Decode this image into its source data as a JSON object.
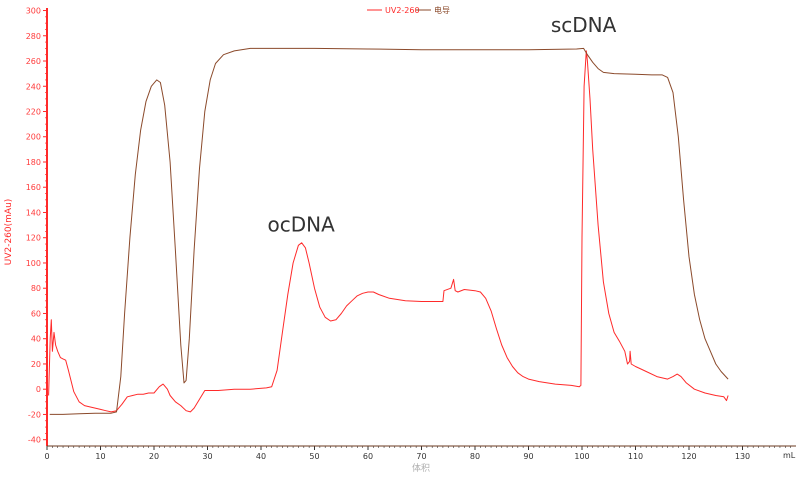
{
  "chart_data": {
    "type": "line",
    "xlabel": "体积",
    "x_unit": "mL",
    "ylabel": "UV2-260(mAu)",
    "xlim": [
      0,
      140
    ],
    "ylim": [
      -45,
      302
    ],
    "x_ticks": [
      "0",
      "10",
      "20",
      "30",
      "40",
      "50",
      "60",
      "70",
      "80",
      "90",
      "100",
      "110",
      "120",
      "130"
    ],
    "y_ticks": [
      "300",
      "280",
      "260",
      "240",
      "220",
      "200",
      "180",
      "160",
      "140",
      "120",
      "100",
      "80",
      "60",
      "40",
      "20",
      "0",
      "-20",
      "-40"
    ],
    "legend_position": "top-center",
    "colors": {
      "uv": "#ff2a2a",
      "cond": "#8b4a2b",
      "axis": "#ff2a2a",
      "tick_label": "#ff3b3b",
      "bottom_axis": "#6b3a1f"
    },
    "series": [
      {
        "name": "UV2-260",
        "color_key": "uv",
        "points": [
          [
            0.3,
            -5
          ],
          [
            0.6,
            40
          ],
          [
            0.8,
            55
          ],
          [
            1.0,
            30
          ],
          [
            1.3,
            45
          ],
          [
            1.6,
            35
          ],
          [
            2.0,
            30
          ],
          [
            2.5,
            25
          ],
          [
            3.0,
            24
          ],
          [
            3.5,
            23
          ],
          [
            4.0,
            15
          ],
          [
            5.0,
            -2
          ],
          [
            6.0,
            -10
          ],
          [
            7.0,
            -13
          ],
          [
            8.0,
            -14
          ],
          [
            9.0,
            -15
          ],
          [
            10.0,
            -16
          ],
          [
            11.0,
            -17
          ],
          [
            12.0,
            -18
          ],
          [
            13.0,
            -17
          ],
          [
            14.0,
            -12
          ],
          [
            15.0,
            -6
          ],
          [
            16.0,
            -5
          ],
          [
            17.0,
            -4
          ],
          [
            18.0,
            -4
          ],
          [
            19.0,
            -3
          ],
          [
            20.0,
            -3
          ],
          [
            21.0,
            2
          ],
          [
            21.7,
            4
          ],
          [
            22.5,
            0
          ],
          [
            23.0,
            -5
          ],
          [
            24.0,
            -10
          ],
          [
            25.0,
            -13
          ],
          [
            26.0,
            -17
          ],
          [
            26.8,
            -18
          ],
          [
            27.5,
            -15
          ],
          [
            28.5,
            -8
          ],
          [
            29.5,
            -1
          ],
          [
            30.5,
            -1
          ],
          [
            32.0,
            -1
          ],
          [
            35.0,
            0
          ],
          [
            38.0,
            0
          ],
          [
            41.0,
            1
          ],
          [
            42.0,
            2
          ],
          [
            43.0,
            15
          ],
          [
            44.0,
            45
          ],
          [
            45.0,
            75
          ],
          [
            46.0,
            100
          ],
          [
            47.0,
            114
          ],
          [
            47.6,
            116
          ],
          [
            48.3,
            112
          ],
          [
            49.0,
            100
          ],
          [
            50.0,
            80
          ],
          [
            51.0,
            65
          ],
          [
            52.0,
            57
          ],
          [
            53.0,
            54
          ],
          [
            54.0,
            55
          ],
          [
            55.0,
            60
          ],
          [
            56.0,
            66
          ],
          [
            57.0,
            70
          ],
          [
            58.0,
            74
          ],
          [
            59.0,
            76
          ],
          [
            60.0,
            77
          ],
          [
            61.0,
            77
          ],
          [
            62.0,
            75
          ],
          [
            64.0,
            72
          ],
          [
            67.0,
            70
          ],
          [
            70.0,
            69.5
          ],
          [
            74.0,
            69.5
          ],
          [
            74.2,
            78
          ],
          [
            75.5,
            80
          ],
          [
            76.0,
            87
          ],
          [
            76.3,
            78
          ],
          [
            76.8,
            77
          ],
          [
            78.0,
            79
          ],
          [
            80.0,
            78
          ],
          [
            81.0,
            77
          ],
          [
            82.0,
            72
          ],
          [
            83.0,
            62
          ],
          [
            84.0,
            48
          ],
          [
            85.0,
            35
          ],
          [
            86.0,
            25
          ],
          [
            87.0,
            18
          ],
          [
            88.0,
            13
          ],
          [
            89.0,
            10
          ],
          [
            90.0,
            8
          ],
          [
            92.0,
            6
          ],
          [
            95.0,
            4
          ],
          [
            98.0,
            3
          ],
          [
            99.5,
            2
          ],
          [
            99.8,
            3
          ],
          [
            100.0,
            120
          ],
          [
            100.4,
            240
          ],
          [
            100.8,
            268
          ],
          [
            101.0,
            260
          ],
          [
            101.5,
            230
          ],
          [
            102.0,
            190
          ],
          [
            103.0,
            130
          ],
          [
            104.0,
            85
          ],
          [
            105.0,
            60
          ],
          [
            106.0,
            45
          ],
          [
            107.0,
            38
          ],
          [
            108.0,
            30
          ],
          [
            108.5,
            20
          ],
          [
            108.9,
            22
          ],
          [
            109.0,
            30
          ],
          [
            109.2,
            20
          ],
          [
            110.0,
            18
          ],
          [
            111.0,
            16
          ],
          [
            112.0,
            14
          ],
          [
            114.0,
            10
          ],
          [
            116.0,
            8
          ],
          [
            117.0,
            10
          ],
          [
            117.8,
            12
          ],
          [
            118.5,
            10
          ],
          [
            119.5,
            5
          ],
          [
            121.0,
            0
          ],
          [
            123.0,
            -3
          ],
          [
            125.0,
            -5
          ],
          [
            126.5,
            -6
          ],
          [
            127.0,
            -9
          ],
          [
            127.3,
            -5
          ]
        ]
      },
      {
        "name": "电导",
        "color_key": "cond",
        "points": [
          [
            0.5,
            -20
          ],
          [
            3.0,
            -20
          ],
          [
            6.0,
            -19.5
          ],
          [
            9.0,
            -19
          ],
          [
            12.0,
            -19
          ],
          [
            13.0,
            -18
          ],
          [
            13.8,
            10
          ],
          [
            14.5,
            60
          ],
          [
            15.5,
            120
          ],
          [
            16.5,
            170
          ],
          [
            17.5,
            205
          ],
          [
            18.5,
            228
          ],
          [
            19.5,
            240
          ],
          [
            20.5,
            245
          ],
          [
            21.2,
            243
          ],
          [
            22.0,
            225
          ],
          [
            23.0,
            180
          ],
          [
            24.0,
            110
          ],
          [
            25.0,
            35
          ],
          [
            25.6,
            5
          ],
          [
            26.0,
            7
          ],
          [
            26.6,
            40
          ],
          [
            27.5,
            110
          ],
          [
            28.5,
            175
          ],
          [
            29.5,
            220
          ],
          [
            30.5,
            245
          ],
          [
            31.5,
            258
          ],
          [
            33.0,
            265
          ],
          [
            35.0,
            268
          ],
          [
            38.0,
            270
          ],
          [
            42.0,
            270
          ],
          [
            50.0,
            270
          ],
          [
            60.0,
            269.5
          ],
          [
            70.0,
            269
          ],
          [
            80.0,
            269
          ],
          [
            90.0,
            269
          ],
          [
            99.0,
            269.5
          ],
          [
            100.3,
            270
          ],
          [
            101.0,
            265
          ],
          [
            102.0,
            259
          ],
          [
            103.0,
            254
          ],
          [
            104.0,
            251
          ],
          [
            106.0,
            250
          ],
          [
            110.0,
            249.5
          ],
          [
            113.0,
            249
          ],
          [
            115.0,
            249
          ],
          [
            116.0,
            247
          ],
          [
            117.0,
            235
          ],
          [
            118.0,
            200
          ],
          [
            119.0,
            150
          ],
          [
            120.0,
            105
          ],
          [
            121.0,
            75
          ],
          [
            122.0,
            55
          ],
          [
            123.0,
            40
          ],
          [
            124.0,
            30
          ],
          [
            125.0,
            20
          ],
          [
            126.0,
            14
          ],
          [
            127.3,
            8
          ]
        ]
      }
    ],
    "annotations": [
      {
        "text": "ocDNA",
        "x": 47.5,
        "y": 125
      },
      {
        "text": "scDNA",
        "x": 100.3,
        "y": 283
      }
    ]
  }
}
